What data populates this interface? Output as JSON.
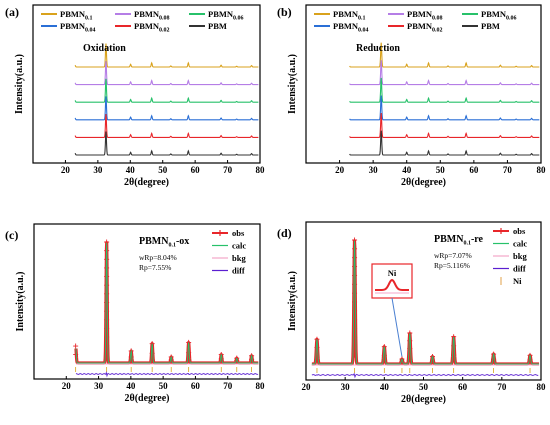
{
  "figure": {
    "panels": [
      {
        "id": "a",
        "type": "line",
        "panel_label": "(a)",
        "annotation": "Oxidation",
        "xlabel": "2θ(degree)",
        "ylabel": "Intensity(a.u.)",
        "xlim": [
          10,
          80
        ],
        "xticks": [
          "20",
          "30",
          "40",
          "50",
          "60",
          "70",
          "80"
        ],
        "legend_position": "top",
        "series": [
          {
            "name": "PBMN0.1",
            "name_main": "PBMN",
            "name_sub": "0.1",
            "color": "#d9a21c"
          },
          {
            "name": "PBMN0.08",
            "name_main": "PBMN",
            "name_sub": "0.08",
            "color": "#b57ee6"
          },
          {
            "name": "PBMN0.06",
            "name_main": "PBMN",
            "name_sub": "0.06",
            "color": "#27c16a"
          },
          {
            "name": "PBMN0.04",
            "name_main": "PBMN",
            "name_sub": "0.04",
            "color": "#2a6fd6"
          },
          {
            "name": "PBMN0.02",
            "name_main": "PBMN",
            "name_sub": "0.02",
            "color": "#e8262a"
          },
          {
            "name": "PBM",
            "name_main": "PBM",
            "name_sub": "",
            "color": "#333333"
          }
        ],
        "peaks": [
          {
            "x": 22.9,
            "h": 0.25
          },
          {
            "x": 32.5,
            "h": 2.6
          },
          {
            "x": 40.1,
            "h": 0.3
          },
          {
            "x": 46.6,
            "h": 0.45
          },
          {
            "x": 52.5,
            "h": 0.12
          },
          {
            "x": 57.9,
            "h": 0.45
          },
          {
            "x": 68.0,
            "h": 0.2
          },
          {
            "x": 72.8,
            "h": 0.08
          },
          {
            "x": 77.4,
            "h": 0.16
          }
        ]
      },
      {
        "id": "b",
        "type": "line",
        "panel_label": "(b)",
        "annotation": "Reduction",
        "xlabel": "2θ(degree)",
        "ylabel": "Intensity(a.u.)",
        "xlim": [
          10,
          80
        ],
        "xticks": [
          "20",
          "30",
          "40",
          "50",
          "60",
          "70",
          "80"
        ],
        "legend_position": "top",
        "series": [
          {
            "name": "PBMN0.1",
            "name_main": "PBMN",
            "name_sub": "0.1",
            "color": "#d9a21c"
          },
          {
            "name": "PBMN0.08",
            "name_main": "PBMN",
            "name_sub": "0.08",
            "color": "#b57ee6"
          },
          {
            "name": "PBMN0.06",
            "name_main": "PBMN",
            "name_sub": "0.06",
            "color": "#27c16a"
          },
          {
            "name": "PBMN0.04",
            "name_main": "PBMN",
            "name_sub": "0.04",
            "color": "#2a6fd6"
          },
          {
            "name": "PBMN0.02",
            "name_main": "PBMN",
            "name_sub": "0.02",
            "color": "#e8262a"
          },
          {
            "name": "PBM",
            "name_main": "PBM",
            "name_sub": "",
            "color": "#333333"
          }
        ],
        "peaks": [
          {
            "x": 22.8,
            "h": 0.25
          },
          {
            "x": 32.4,
            "h": 2.7
          },
          {
            "x": 40.0,
            "h": 0.3
          },
          {
            "x": 46.5,
            "h": 0.45
          },
          {
            "x": 52.3,
            "h": 0.12
          },
          {
            "x": 57.7,
            "h": 0.45
          },
          {
            "x": 67.9,
            "h": 0.2
          },
          {
            "x": 72.6,
            "h": 0.08
          },
          {
            "x": 77.2,
            "h": 0.16
          }
        ]
      },
      {
        "id": "c",
        "type": "scatter",
        "panel_label": "(c)",
        "sample_main": "PBMN",
        "sample_sub": "0.1",
        "sample_suffix": "-ox",
        "stats": [
          "wRp=8.04%",
          "Rp=7.55%"
        ],
        "xlabel": "2θ(degree)",
        "ylabel": "Intensity(a.u.)",
        "xlim": [
          10,
          80
        ],
        "xticks": [
          "20",
          "30",
          "40",
          "50",
          "60",
          "70",
          "80"
        ],
        "legend_position": "top-right",
        "legend": [
          {
            "label": "obs",
            "color": "#e8262a"
          },
          {
            "label": "calc",
            "color": "#27c16a"
          },
          {
            "label": "bkg",
            "color": "#f4a6c8"
          },
          {
            "label": "diff",
            "color": "#5b1fd1"
          }
        ],
        "peaks": [
          {
            "x": 22.9,
            "h": 0.14
          },
          {
            "x": 32.5,
            "h": 1.0
          },
          {
            "x": 40.1,
            "h": 0.1
          },
          {
            "x": 46.6,
            "h": 0.16
          },
          {
            "x": 52.5,
            "h": 0.05
          },
          {
            "x": 57.9,
            "h": 0.17
          },
          {
            "x": 68.0,
            "h": 0.07
          },
          {
            "x": 72.8,
            "h": 0.04
          },
          {
            "x": 77.4,
            "h": 0.06
          }
        ]
      },
      {
        "id": "d",
        "type": "scatter",
        "panel_label": "(d)",
        "sample_main": "PBMN",
        "sample_sub": "0.1",
        "sample_suffix": "-re",
        "stats": [
          "wRp=7.07%",
          "Rp=5.116%"
        ],
        "inset_label": "Ni",
        "xlabel": "2θ(degree)",
        "ylabel": "Intensity(a.u.)",
        "xlim": [
          20,
          80
        ],
        "xticks": [
          "20",
          "30",
          "40",
          "50",
          "60",
          "70",
          "80"
        ],
        "legend_position": "top-right",
        "legend": [
          {
            "label": "obs",
            "color": "#e8262a"
          },
          {
            "label": "calc",
            "color": "#27c16a"
          },
          {
            "label": "bkg",
            "color": "#f4a6c8"
          },
          {
            "label": "diff",
            "color": "#5b1fd1"
          },
          {
            "label": "Ni",
            "color": "#e0a04a"
          }
        ],
        "peaks": [
          {
            "x": 22.8,
            "h": 0.2
          },
          {
            "x": 32.4,
            "h": 1.0
          },
          {
            "x": 40.0,
            "h": 0.14
          },
          {
            "x": 44.5,
            "h": 0.04
          },
          {
            "x": 46.5,
            "h": 0.25
          },
          {
            "x": 52.3,
            "h": 0.06
          },
          {
            "x": 57.7,
            "h": 0.22
          },
          {
            "x": 67.9,
            "h": 0.08
          },
          {
            "x": 77.2,
            "h": 0.07
          }
        ]
      }
    ]
  }
}
